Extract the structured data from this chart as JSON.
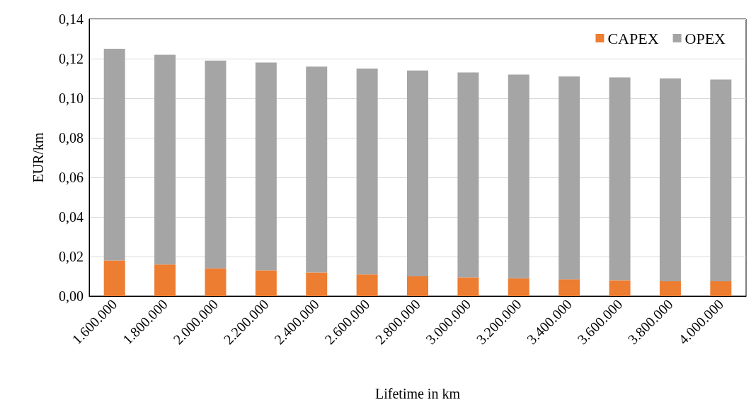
{
  "chart_data": {
    "type": "bar",
    "stacked": true,
    "xlabel": "Lifetime in km",
    "ylabel": "EUR/km",
    "categories": [
      "1.600.000",
      "1.800.000",
      "2.000.000",
      "2.200.000",
      "2.400.000",
      "2.600.000",
      "2.800.000",
      "3.000.000",
      "3.200.000",
      "3.400.000",
      "3.600.000",
      "3.800.000",
      "4.000.000"
    ],
    "series": [
      {
        "name": "CAPEX",
        "color": "#ed7d31",
        "values": [
          0.018,
          0.016,
          0.014,
          0.013,
          0.012,
          0.011,
          0.01,
          0.0095,
          0.009,
          0.0085,
          0.008,
          0.0075,
          0.0075
        ]
      },
      {
        "name": "OPEX",
        "color": "#a5a5a5",
        "values": [
          0.107,
          0.106,
          0.105,
          0.105,
          0.104,
          0.104,
          0.104,
          0.1035,
          0.103,
          0.1025,
          0.1025,
          0.1025,
          0.102
        ]
      }
    ],
    "ylim": [
      0,
      0.14
    ],
    "yticks": [
      {
        "value": 0,
        "label": "0,00"
      },
      {
        "value": 0.02,
        "label": "0,02"
      },
      {
        "value": 0.04,
        "label": "0,04"
      },
      {
        "value": 0.06,
        "label": "0,06"
      },
      {
        "value": 0.08,
        "label": "0,08"
      },
      {
        "value": 0.1,
        "label": "0,10"
      },
      {
        "value": 0.12,
        "label": "0,12"
      },
      {
        "value": 0.14,
        "label": "0,14"
      }
    ],
    "grid": "y",
    "legend": "top right"
  }
}
